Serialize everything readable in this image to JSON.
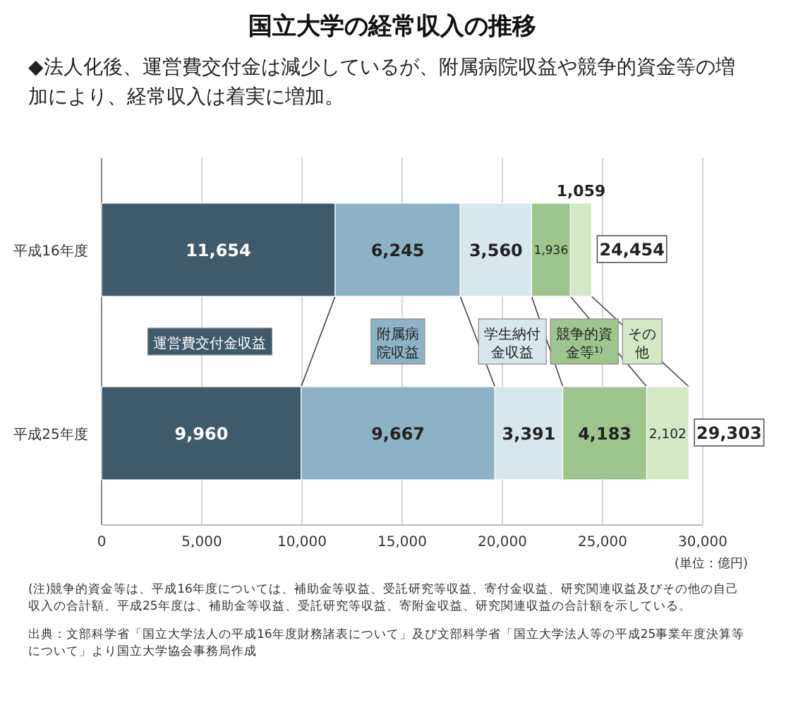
{
  "chart_data": {
    "type": "bar",
    "orientation": "horizontal",
    "stacked": true,
    "title": "国立大学の経常収入の推移",
    "subtitle": "◆法人化後、運営費交付金は減少しているが、附属病院収益や競争的資金等の増加により、経常収入は着実に増加。",
    "xlabel": "(単位：億円)",
    "categories": [
      "平成16年度",
      "平成25年度"
    ],
    "series": [
      {
        "name": "運営費交付金収益",
        "color": "#3e5a6b",
        "values": [
          11654,
          9960
        ],
        "value_labels": [
          "11,654",
          "9,960"
        ]
      },
      {
        "name": "附属病院収益",
        "color": "#8db2c6",
        "values": [
          6245,
          9667
        ],
        "value_labels": [
          "6,245",
          "9,667"
        ]
      },
      {
        "name": "学生納付金収益",
        "color": "#d6e8ec",
        "values": [
          3560,
          3391
        ],
        "value_labels": [
          "3,560",
          "3,391"
        ]
      },
      {
        "name": "競争的資金等¹⁾",
        "color": "#9dc58d",
        "values": [
          1936,
          4183
        ],
        "value_labels": [
          "1,936",
          "4,183"
        ]
      },
      {
        "name": "その他",
        "color": "#d3e8c5",
        "values": [
          1059,
          2102
        ],
        "value_labels": [
          "1,059",
          "2,102"
        ]
      }
    ],
    "totals": [
      "24,454",
      "29,303"
    ],
    "xlim": [
      0,
      30000
    ],
    "xticks": [
      0,
      {
        "value": 5000,
        "label": "5,000"
      },
      {
        "value": 10000,
        "label": "10,000"
      },
      {
        "value": 15000,
        "label": "15,000"
      },
      {
        "value": 20000,
        "label": "20,000"
      },
      {
        "value": 25000,
        "label": "25,000"
      },
      {
        "value": 30000,
        "label": "30,000"
      }
    ],
    "grid": "x",
    "annotations": [
      "(注)競争的資金等は、平成16年度については、補助金等収益、受託研究等収益、寄付金収益、研究関連収益及びその他の自己収入の合計額、平成25年度は、補助金等収益、受託研究等収益、寄附金収益、研究関連収益の合計額を示している。",
      "出典：文部科学省「国立大学法人の平成16年度財務諸表について」及び文部科学省「国立大学法人等の平成25事業年度決算等について」より国立大学協会事務局作成"
    ]
  }
}
